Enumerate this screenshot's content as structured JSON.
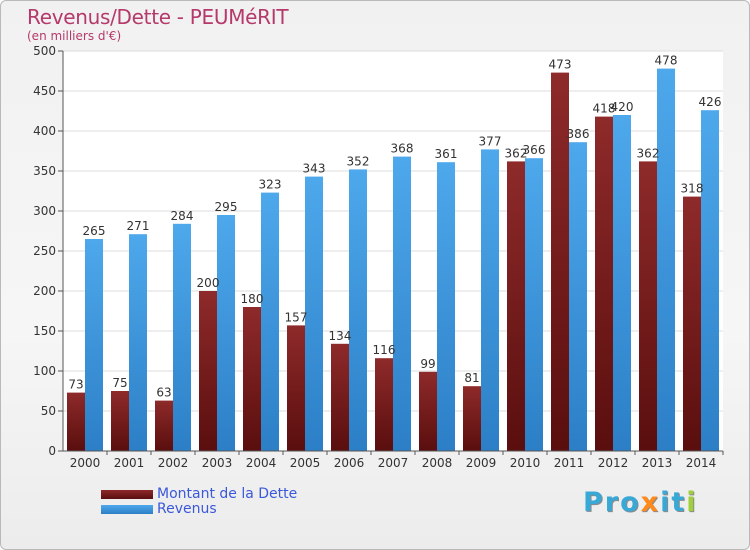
{
  "header": {
    "title": "Revenus/Dette - PEUMéRIT",
    "subtitle": "(en milliers d'€)"
  },
  "chart_data": {
    "type": "bar",
    "categories": [
      "2000",
      "2001",
      "2002",
      "2003",
      "2004",
      "2005",
      "2006",
      "2007",
      "2008",
      "2009",
      "2010",
      "2011",
      "2012",
      "2013",
      "2014"
    ],
    "series": [
      {
        "name": "Montant de la Dette",
        "color": "#7d2121",
        "values": [
          73,
          75,
          63,
          200,
          180,
          157,
          134,
          116,
          99,
          81,
          362,
          473,
          418,
          362,
          318
        ]
      },
      {
        "name": "Revenus",
        "color": "#3f9ae2",
        "values": [
          265,
          271,
          284,
          295,
          323,
          343,
          352,
          368,
          361,
          377,
          366,
          386,
          420,
          478,
          426
        ]
      }
    ],
    "yticks": [
      "0",
      "50",
      "100",
      "150",
      "200",
      "250",
      "300",
      "350",
      "400",
      "450",
      "500"
    ],
    "ylim": [
      0,
      500
    ],
    "grid": true,
    "legend_position": "bottom-left"
  },
  "legend": {
    "items": [
      {
        "label": "Montant de la Dette",
        "color": "#7d2121"
      },
      {
        "label": "Revenus",
        "color": "#3f9ae2"
      }
    ]
  },
  "logo": {
    "text_p": "Pro",
    "text_x": "x",
    "text_i": "i",
    "text_t": "t",
    "text_i2": "i"
  }
}
